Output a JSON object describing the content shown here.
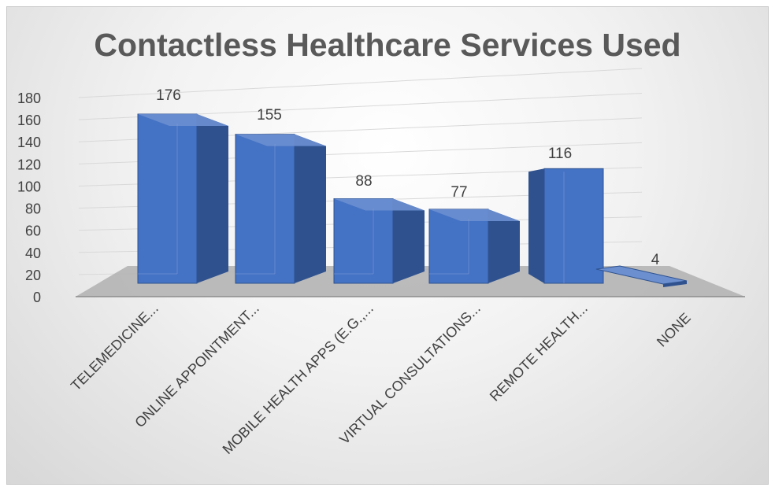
{
  "chart_data": {
    "type": "bar",
    "title": "Contactless Healthcare Services Used",
    "categories": [
      "TELEMEDICINE...",
      "ONLINE APPOINTMENT...",
      "MOBILE HEALTH APPS (E.G.,...",
      "VIRTUAL CONSULTATIONS...",
      "REMOTE HEALTH...",
      "NONE"
    ],
    "values": [
      176,
      155,
      88,
      77,
      116,
      4
    ],
    "data_labels": [
      "176",
      "155",
      "88",
      "77",
      "116",
      "4"
    ],
    "y_ticks": [
      "0",
      "20",
      "40",
      "60",
      "80",
      "100",
      "120",
      "140",
      "160",
      "180"
    ],
    "ylim": [
      0,
      180
    ],
    "xlabel": "",
    "ylabel": "",
    "grid": true,
    "legend": "none",
    "style": "3d-column",
    "colors": {
      "bar_front": "#4472c4",
      "bar_side": "#2f528f",
      "bar_top": "#6c8fd0",
      "floor": "#b4b4b4",
      "gridline": "#d9d9d9",
      "text": "#404040",
      "title": "#595959"
    }
  }
}
